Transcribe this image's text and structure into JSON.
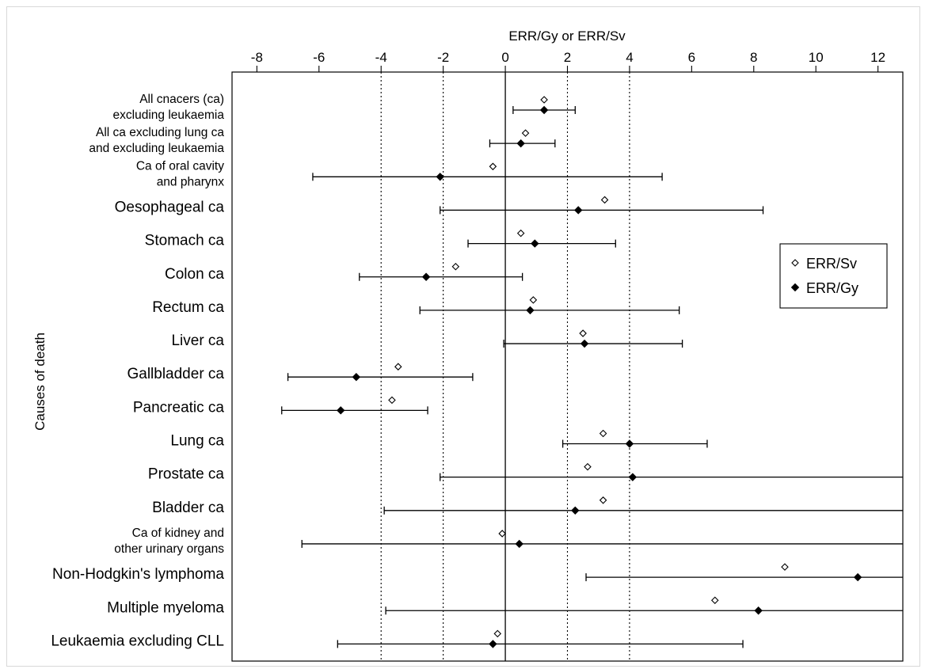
{
  "chart_data": {
    "type": "scatter",
    "xlabel": "ERR/Gy or ERR/Sv",
    "ylabel": "Causes of death",
    "xlim": [
      -8.8,
      12.8
    ],
    "xticks": [
      -8,
      -6,
      -4,
      -2,
      0,
      2,
      4,
      6,
      8,
      10,
      12
    ],
    "xtick_labels": [
      "-8",
      "-6",
      "-4",
      "-2",
      "0",
      "2",
      "4",
      "6",
      "8",
      "10",
      "12"
    ],
    "reference_lines": [
      -4,
      -2,
      0,
      2,
      4
    ],
    "legend": {
      "position": "right",
      "entries": [
        "ERR/Sv",
        "ERR/Gy"
      ]
    },
    "categories": [
      [
        "All cnacers (ca)",
        "excluding leukaemia"
      ],
      [
        "All ca excluding lung ca",
        "and excluding leukaemia"
      ],
      [
        "Ca of oral cavity",
        "and pharynx"
      ],
      [
        "Oesophageal ca"
      ],
      [
        "Stomach ca"
      ],
      [
        "Colon ca"
      ],
      [
        "Rectum ca"
      ],
      [
        "Liver ca"
      ],
      [
        "Gallbladder ca"
      ],
      [
        "Pancreatic ca"
      ],
      [
        "Lung ca"
      ],
      [
        "Prostate ca"
      ],
      [
        "Bladder ca"
      ],
      [
        "Ca of kidney and",
        "other urinary organs"
      ],
      [
        "Non-Hodgkin's lymphoma"
      ],
      [
        "Multiple myeloma"
      ],
      [
        "Leukaemia excluding CLL"
      ]
    ],
    "series": [
      {
        "name": "ERR/Sv",
        "marker": "open-diamond",
        "values": [
          1.25,
          0.65,
          -0.4,
          3.2,
          0.5,
          -1.6,
          0.9,
          2.5,
          -3.45,
          -3.65,
          3.15,
          2.65,
          3.15,
          -0.1,
          9.0,
          6.75,
          -0.25
        ]
      },
      {
        "name": "ERR/Gy",
        "marker": "filled-diamond",
        "values": [
          1.25,
          0.5,
          -2.1,
          2.35,
          0.95,
          -2.55,
          0.8,
          2.55,
          -4.8,
          -5.3,
          4.0,
          4.1,
          2.25,
          0.45,
          11.35,
          8.15,
          -0.4
        ],
        "ci_lower": [
          0.25,
          -0.5,
          -6.2,
          -2.1,
          -1.2,
          -4.7,
          -2.75,
          -0.05,
          -7.0,
          -7.2,
          1.85,
          -2.1,
          -3.9,
          -6.55,
          2.6,
          -3.85,
          -5.4
        ],
        "ci_upper": [
          2.25,
          1.6,
          5.05,
          8.3,
          3.55,
          0.55,
          5.6,
          5.7,
          -1.05,
          -2.5,
          6.5,
          12.8,
          12.8,
          12.8,
          12.8,
          12.8,
          7.65
        ]
      }
    ]
  }
}
